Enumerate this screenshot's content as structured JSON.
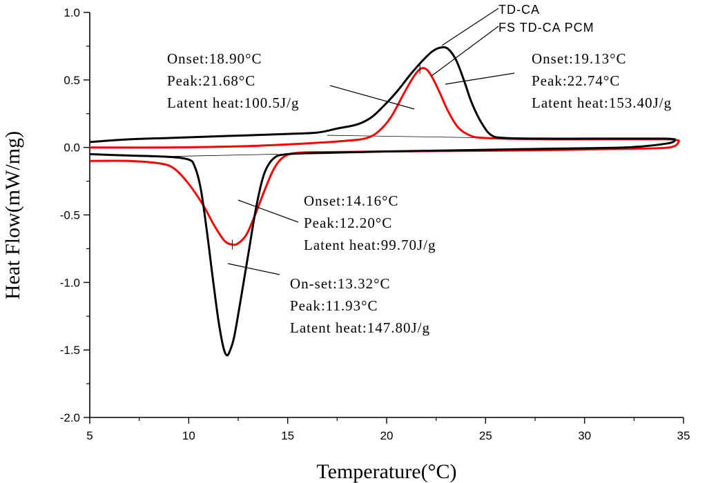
{
  "chart_data": {
    "type": "line",
    "title": "",
    "xlabel": "Temperature(°C)",
    "ylabel": "Heat Flow(mW/mg)",
    "xlim": [
      5,
      35
    ],
    "ylim": [
      -2.0,
      1.0
    ],
    "xticks": [
      5,
      10,
      15,
      20,
      25,
      30,
      35
    ],
    "xtick_labels": [
      "5",
      "10",
      "15",
      "20",
      "25",
      "30",
      "35"
    ],
    "yticks": [
      -2.0,
      -1.5,
      -1.0,
      -0.5,
      0.0,
      0.5,
      1.0
    ],
    "ytick_labels": [
      "-2.0",
      "-1.5",
      "-1.0",
      "-0.5",
      "0.0",
      "0.5",
      "1.0"
    ],
    "grid": false,
    "series": [
      {
        "name": "TD-CA",
        "color": "#000000",
        "heating": [
          [
            5.0,
            0.04
          ],
          [
            7.0,
            0.06
          ],
          [
            9.0,
            0.07
          ],
          [
            11.0,
            0.08
          ],
          [
            13.0,
            0.09
          ],
          [
            15.0,
            0.1
          ],
          [
            16.5,
            0.11
          ],
          [
            17.5,
            0.14
          ],
          [
            18.5,
            0.17
          ],
          [
            19.2,
            0.22
          ],
          [
            19.8,
            0.3
          ],
          [
            20.5,
            0.41
          ],
          [
            21.2,
            0.54
          ],
          [
            21.8,
            0.64
          ],
          [
            22.3,
            0.71
          ],
          [
            22.74,
            0.74
          ],
          [
            23.1,
            0.73
          ],
          [
            23.5,
            0.65
          ],
          [
            23.9,
            0.5
          ],
          [
            24.3,
            0.33
          ],
          [
            24.8,
            0.18
          ],
          [
            25.3,
            0.09
          ],
          [
            26.0,
            0.07
          ],
          [
            28.0,
            0.065
          ],
          [
            30.0,
            0.065
          ],
          [
            32.0,
            0.065
          ],
          [
            34.0,
            0.065
          ],
          [
            34.6,
            0.06
          ]
        ],
        "cooling": [
          [
            34.6,
            0.06
          ],
          [
            34.2,
            0.03
          ],
          [
            32.0,
            0.0
          ],
          [
            28.0,
            -0.01
          ],
          [
            24.0,
            -0.02
          ],
          [
            20.0,
            -0.03
          ],
          [
            17.0,
            -0.04
          ],
          [
            15.0,
            -0.05
          ],
          [
            14.3,
            -0.08
          ],
          [
            13.8,
            -0.2
          ],
          [
            13.4,
            -0.45
          ],
          [
            13.0,
            -0.8
          ],
          [
            12.6,
            -1.15
          ],
          [
            12.3,
            -1.4
          ],
          [
            12.1,
            -1.5
          ],
          [
            11.93,
            -1.54
          ],
          [
            11.75,
            -1.48
          ],
          [
            11.5,
            -1.28
          ],
          [
            11.2,
            -0.95
          ],
          [
            10.9,
            -0.6
          ],
          [
            10.6,
            -0.3
          ],
          [
            10.3,
            -0.14
          ],
          [
            10.0,
            -0.09
          ],
          [
            9.0,
            -0.07
          ],
          [
            7.0,
            -0.06
          ],
          [
            5.0,
            -0.05
          ]
        ],
        "annotations": [
          {
            "lines": [
              "Onset:19.13°C",
              "Peak:22.74°C",
              "Latent heat:153.40J/g"
            ]
          },
          {
            "lines": [
              "On-set:13.32°C",
              "Peak:11.93°C",
              "Latent heat:147.80J/g"
            ]
          }
        ]
      },
      {
        "name": "FS TD-CA PCM",
        "color": "#ff0000",
        "heating": [
          [
            5.0,
            0.0
          ],
          [
            9.0,
            0.0
          ],
          [
            13.0,
            0.01
          ],
          [
            16.0,
            0.03
          ],
          [
            18.0,
            0.05
          ],
          [
            19.0,
            0.07
          ],
          [
            19.6,
            0.12
          ],
          [
            20.2,
            0.22
          ],
          [
            20.8,
            0.38
          ],
          [
            21.3,
            0.51
          ],
          [
            21.68,
            0.58
          ],
          [
            22.0,
            0.58
          ],
          [
            22.3,
            0.52
          ],
          [
            22.7,
            0.4
          ],
          [
            23.1,
            0.27
          ],
          [
            23.6,
            0.15
          ],
          [
            24.2,
            0.09
          ],
          [
            25.0,
            0.07
          ],
          [
            28.0,
            0.06
          ],
          [
            31.0,
            0.06
          ],
          [
            33.0,
            0.06
          ],
          [
            34.3,
            0.06
          ],
          [
            34.8,
            0.05
          ]
        ],
        "cooling": [
          [
            34.8,
            0.05
          ],
          [
            34.3,
            0.0
          ],
          [
            32.0,
            -0.01
          ],
          [
            28.0,
            -0.02
          ],
          [
            24.0,
            -0.025
          ],
          [
            20.0,
            -0.03
          ],
          [
            17.0,
            -0.035
          ],
          [
            15.5,
            -0.04
          ],
          [
            14.8,
            -0.07
          ],
          [
            14.3,
            -0.16
          ],
          [
            13.8,
            -0.33
          ],
          [
            13.3,
            -0.52
          ],
          [
            12.9,
            -0.65
          ],
          [
            12.5,
            -0.71
          ],
          [
            12.2,
            -0.72
          ],
          [
            11.8,
            -0.69
          ],
          [
            11.3,
            -0.58
          ],
          [
            10.7,
            -0.42
          ],
          [
            10.0,
            -0.27
          ],
          [
            9.3,
            -0.16
          ],
          [
            8.6,
            -0.12
          ],
          [
            7.0,
            -0.1
          ],
          [
            5.0,
            -0.1
          ]
        ],
        "annotations": [
          {
            "lines": [
              "Onset:18.90°C",
              "Peak:21.68°C",
              "Latent heat:100.5J/g"
            ]
          },
          {
            "lines": [
              "Onset:14.16°C",
              "Peak:12.20°C",
              "Latent heat:99.70J/g"
            ]
          }
        ]
      }
    ],
    "baselines": [
      {
        "from": [
          17.0,
          0.09
        ],
        "to": [
          25.5,
          0.07
        ]
      },
      {
        "from": [
          8.0,
          -0.07
        ],
        "to": [
          14.5,
          -0.05
        ]
      }
    ]
  }
}
